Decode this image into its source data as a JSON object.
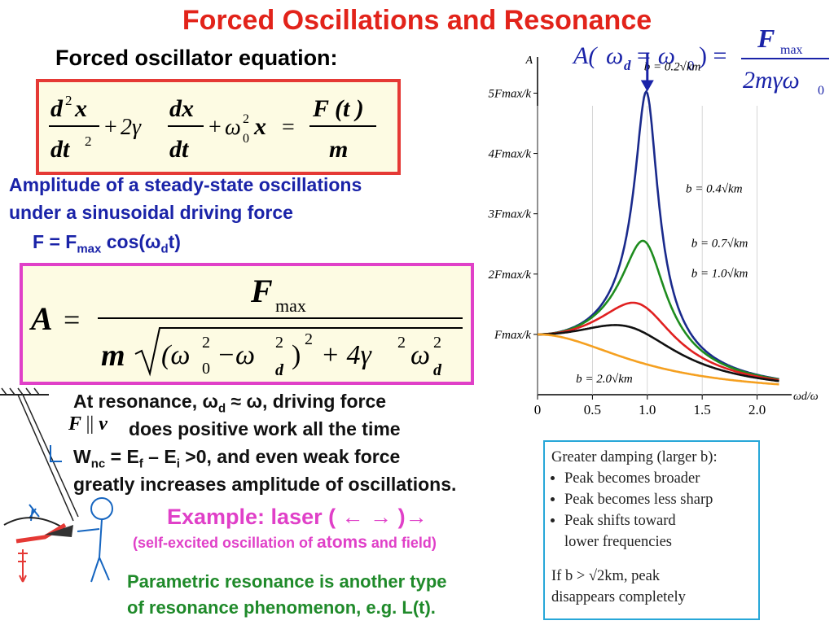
{
  "title": "Forced Oscillations and Resonance",
  "subhead": "Forced oscillator equation:",
  "eq1": {
    "d2x_num": "d",
    "d2x_sup": "2",
    "x": "x",
    "dt2": "dt",
    "two": "2",
    "plus1": "+",
    "two_gamma": "2γ",
    "dx": "dx",
    "dt": "dt",
    "plus2": "+",
    "omega0sq": "ω",
    "zero": "0",
    "sq": "2",
    "equals": "=",
    "Ft": "F (t )",
    "m": "m"
  },
  "amp_text": {
    "line1": "Amplitude of a steady-state oscillations",
    "line2": "under a sinusoidal driving force",
    "force_prefix": "F = F",
    "force_sub": "max",
    "force_mid": " cos(ω",
    "force_sub2": "d",
    "force_end": "t)"
  },
  "eq2": {
    "A": "A",
    "equals": "=",
    "F": "F",
    "max": "max",
    "m": "m",
    "open": "(ω",
    "zero": "0",
    "two1": "2",
    "minus": "−ω",
    "two2": "2",
    "d1": "d",
    "close": ")",
    "two3": "2",
    "plus": "+ 4γ",
    "two4": "2",
    "omega": "ω",
    "two5": "2",
    "d2": "d"
  },
  "resonance": {
    "line1_a": "At resonance, ω",
    "line1_sub": "d",
    "line1_b": " ≈ ω, driving force",
    "Fv_F": "F",
    "Fv_par": "||",
    "Fv_v": "v",
    "line2": "does positive work all the time",
    "line3_a": "W",
    "line3_sub1": "nc",
    "line3_b": " = E",
    "line3_sub2": "f",
    "line3_c": " – E",
    "line3_sub3": "i",
    "line3_d": " >0, and even weak force",
    "line4": "greatly increases amplitude of oscillations."
  },
  "example": {
    "text": "Example:  laser  ( ← → )→"
  },
  "selfexc": {
    "a": "(self-excited oscillation of ",
    "b": "atoms",
    "c": " and field)"
  },
  "param": {
    "line1": "Parametric resonance is another type",
    "line2": "of resonance phenomenon, e.g. L(t)."
  },
  "infobox": {
    "head": "Greater damping (larger b):",
    "items": [
      "Peak becomes broader",
      "Peak becomes less sharp",
      "Peak shifts toward",
      "lower frequencies"
    ],
    "foot1": "If b > √2km, peak",
    "foot2": "disappears completely"
  },
  "top_formula": {
    "A": "A(",
    "omega": "ω",
    "d": "d",
    "eq": " = ω",
    "zero": "0",
    "close": ") =",
    "F": "F",
    "max": "max",
    "den": "2mγω",
    "den_sub": "0"
  },
  "chart_data": {
    "type": "line",
    "xlabel": "ωd/ω",
    "ylabel": "A",
    "x_ticks": [
      "0",
      "0.5",
      "1.0",
      "1.5",
      "2.0"
    ],
    "y_ticks": [
      "Fmax/k",
      "2Fmax/k",
      "3Fmax/k",
      "4Fmax/k",
      "5Fmax/k"
    ],
    "xlim": [
      0,
      2.3
    ],
    "ylim": [
      0,
      5.6
    ],
    "series": [
      {
        "name": "b = 0.2√km",
        "gamma": 0.1,
        "color": "#1a2a8c"
      },
      {
        "name": "b = 0.4√km",
        "gamma": 0.2,
        "color": "#1e8c1e"
      },
      {
        "name": "b = 0.7√km",
        "gamma": 0.35,
        "color": "#e02020"
      },
      {
        "name": "b = 1.0√km",
        "gamma": 0.5,
        "color": "#111111"
      },
      {
        "name": "b = 2.0√km",
        "gamma": 1.0,
        "color": "#f5a020"
      }
    ]
  }
}
